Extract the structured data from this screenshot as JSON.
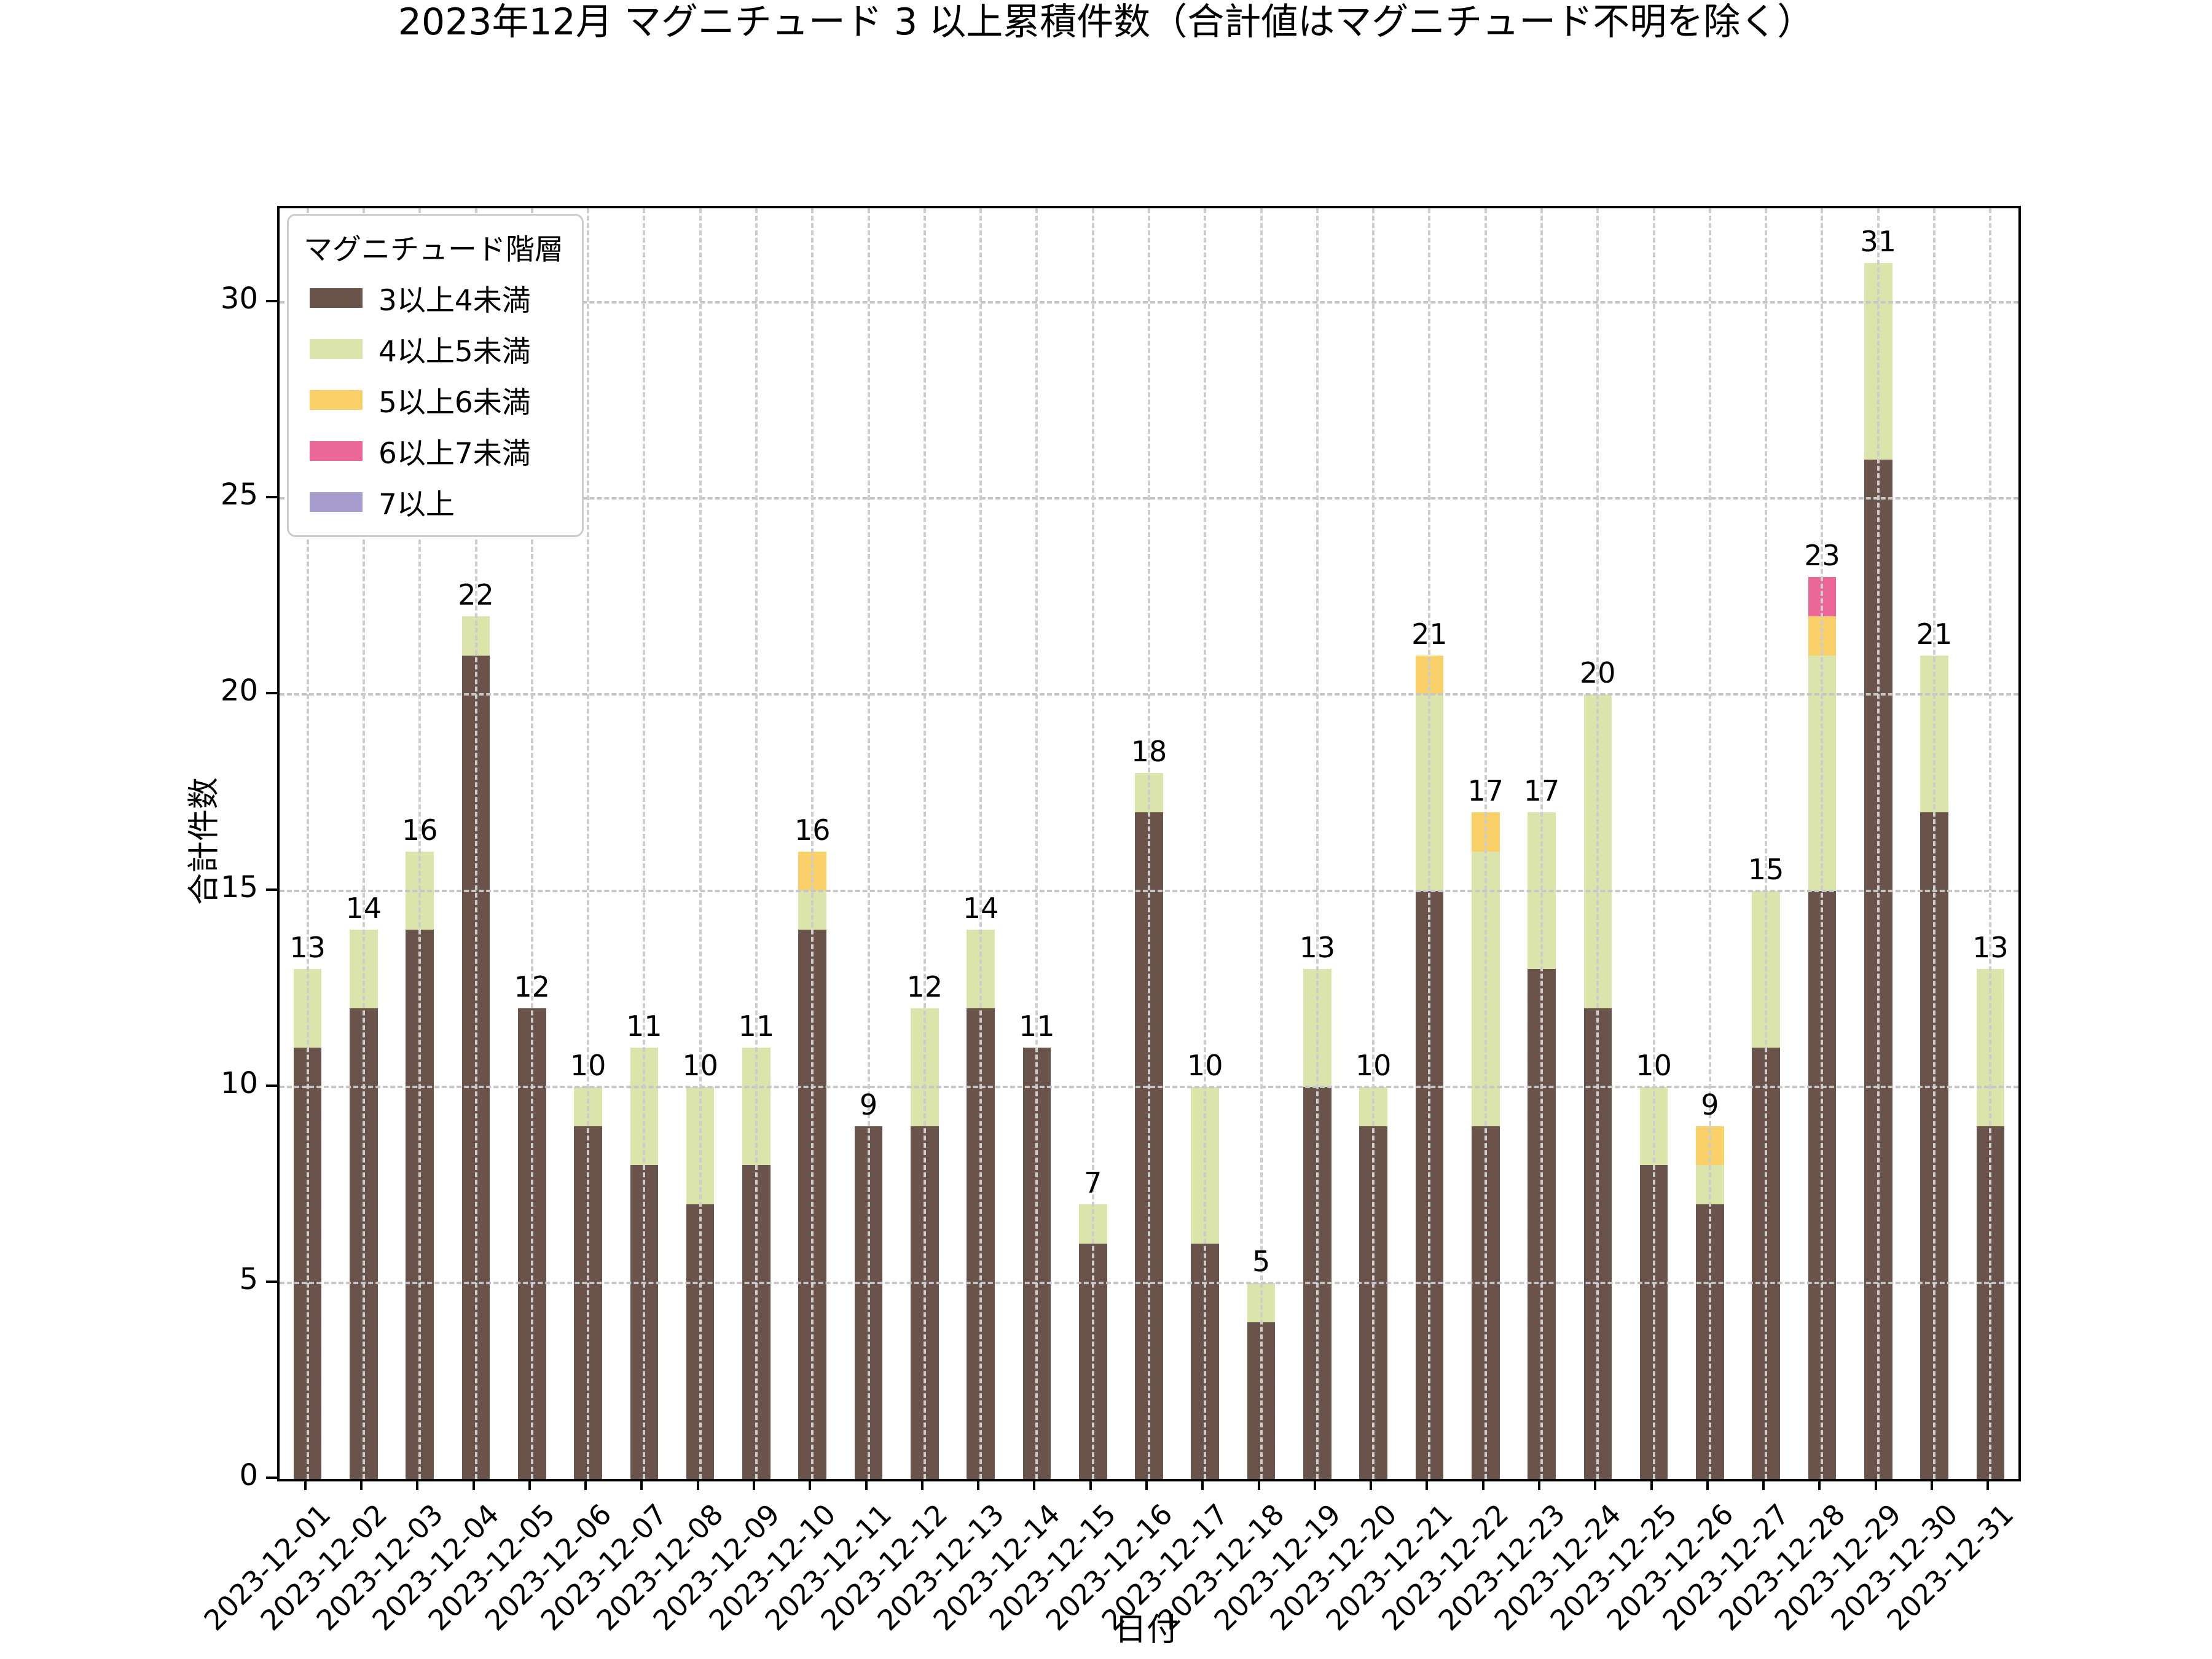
{
  "title": "2023年12月 マグニチュード 3 以上累積件数（合計値はマグニチュード不明を除く）",
  "legend": {
    "title": "マグニチュード階層",
    "items": [
      {
        "label": "3以上4未満",
        "color": "#6a534b"
      },
      {
        "label": "4以上5未満",
        "color": "#dbe5ab"
      },
      {
        "label": "5以上6未満",
        "color": "#fad169"
      },
      {
        "label": "6以上7未満",
        "color": "#ea6798"
      },
      {
        "label": "7以上",
        "color": "#a69cce"
      }
    ]
  },
  "axes": {
    "xlabel": "日付",
    "ylabel": "合計件数",
    "yticks": [
      0,
      5,
      10,
      15,
      20,
      25,
      30
    ],
    "grid": true
  },
  "chart_data": {
    "type": "bar",
    "stacked": true,
    "title": "2023年12月 マグニチュード 3 以上累積件数（合計値はマグニチュード不明を除く）",
    "xlabel": "日付",
    "ylabel": "合計件数",
    "ylim": [
      0,
      32.4
    ],
    "grid": true,
    "legend_position": "upper left",
    "categories": [
      "2023-12-01",
      "2023-12-02",
      "2023-12-03",
      "2023-12-04",
      "2023-12-05",
      "2023-12-06",
      "2023-12-07",
      "2023-12-08",
      "2023-12-09",
      "2023-12-10",
      "2023-12-11",
      "2023-12-12",
      "2023-12-13",
      "2023-12-14",
      "2023-12-15",
      "2023-12-16",
      "2023-12-17",
      "2023-12-18",
      "2023-12-19",
      "2023-12-20",
      "2023-12-21",
      "2023-12-22",
      "2023-12-23",
      "2023-12-24",
      "2023-12-25",
      "2023-12-26",
      "2023-12-27",
      "2023-12-28",
      "2023-12-29",
      "2023-12-30",
      "2023-12-31"
    ],
    "series": [
      {
        "name": "3以上4未満",
        "color": "#6a534b",
        "values": [
          11,
          12,
          14,
          21,
          12,
          9,
          8,
          7,
          8,
          14,
          9,
          9,
          12,
          11,
          6,
          17,
          6,
          4,
          10,
          9,
          15,
          9,
          13,
          12,
          8,
          7,
          11,
          15,
          26,
          17,
          9
        ]
      },
      {
        "name": "4以上5未満",
        "color": "#dbe5ab",
        "values": [
          2,
          2,
          2,
          1,
          0,
          1,
          3,
          3,
          3,
          1,
          0,
          3,
          2,
          0,
          1,
          1,
          4,
          1,
          3,
          1,
          5,
          7,
          4,
          8,
          2,
          1,
          4,
          6,
          5,
          4,
          4
        ]
      },
      {
        "name": "5以上6未満",
        "color": "#fad169",
        "values": [
          0,
          0,
          0,
          0,
          0,
          0,
          0,
          0,
          0,
          1,
          0,
          0,
          0,
          0,
          0,
          0,
          0,
          0,
          0,
          0,
          1,
          1,
          0,
          0,
          0,
          1,
          0,
          1,
          0,
          0,
          0
        ]
      },
      {
        "name": "6以上7未満",
        "color": "#ea6798",
        "values": [
          0,
          0,
          0,
          0,
          0,
          0,
          0,
          0,
          0,
          0,
          0,
          0,
          0,
          0,
          0,
          0,
          0,
          0,
          0,
          0,
          0,
          0,
          0,
          0,
          0,
          0,
          0,
          1,
          0,
          0,
          0
        ]
      },
      {
        "name": "7以上",
        "color": "#a69cce",
        "values": [
          0,
          0,
          0,
          0,
          0,
          0,
          0,
          0,
          0,
          0,
          0,
          0,
          0,
          0,
          0,
          0,
          0,
          0,
          0,
          0,
          0,
          0,
          0,
          0,
          0,
          0,
          0,
          0,
          0,
          0,
          0
        ]
      }
    ],
    "totals": [
      13,
      14,
      16,
      22,
      12,
      10,
      11,
      10,
      11,
      16,
      9,
      12,
      14,
      11,
      7,
      18,
      10,
      5,
      13,
      10,
      21,
      17,
      17,
      20,
      10,
      9,
      15,
      23,
      31,
      21,
      13
    ]
  }
}
